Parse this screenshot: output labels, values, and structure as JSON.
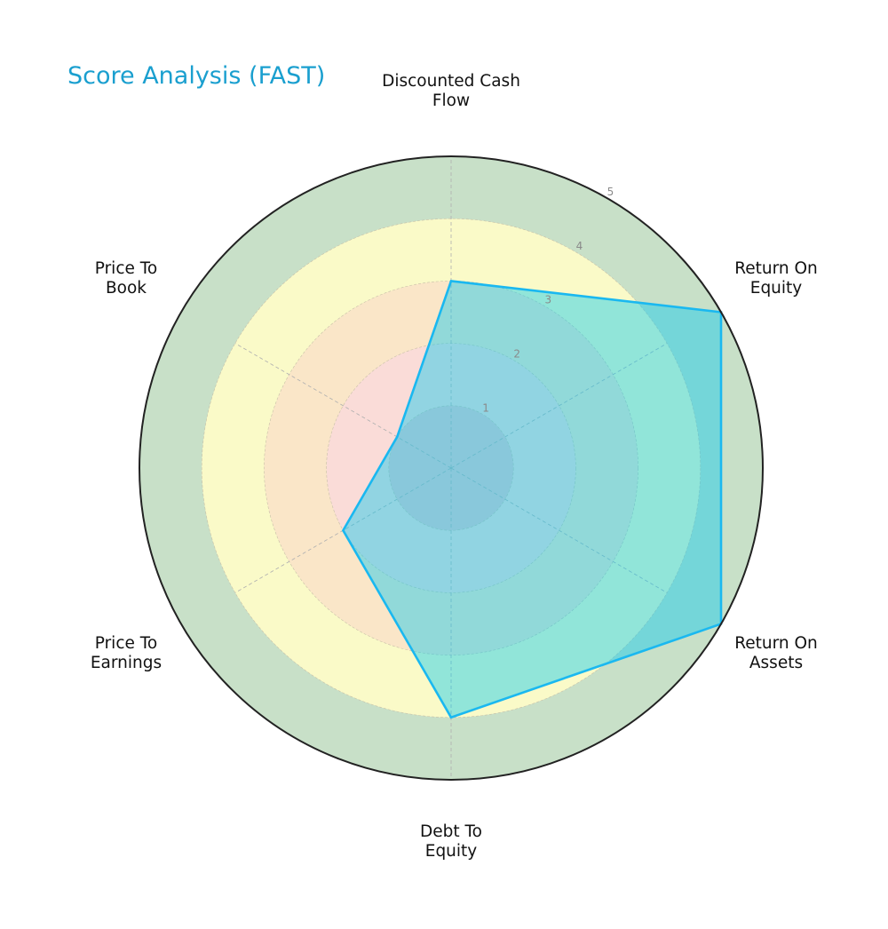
{
  "chart_data": {
    "type": "radar",
    "title": "Score Analysis (FAST)",
    "categories": [
      "Discounted Cash Flow",
      "Return On Equity",
      "Return On Assets",
      "Debt To Equity",
      "Price To Earnings",
      "Price To Book"
    ],
    "category_lines": [
      [
        "Discounted Cash",
        "Flow"
      ],
      [
        "Return On",
        "Equity"
      ],
      [
        "Return On",
        "Assets"
      ],
      [
        "Debt To",
        "Equity"
      ],
      [
        "Price To",
        "Earnings"
      ],
      [
        "Price To",
        "Book"
      ]
    ],
    "series": [
      {
        "name": "FAST",
        "values": [
          3,
          5,
          5,
          4,
          2,
          1
        ]
      }
    ],
    "rlim": [
      0,
      5
    ],
    "r_ticks": [
      "1",
      "2",
      "3",
      "4",
      "5"
    ],
    "band_colors": [
      "#ecc8cc",
      "#fadcd8",
      "#fae6c8",
      "#fafac8",
      "#c8e0c8"
    ],
    "series_fill": "#00c8f0",
    "series_fill_opacity": 0.42,
    "series_stroke": "#1ab8f0",
    "title_color": "#1a9fcf",
    "grid": true,
    "legend": "none"
  }
}
